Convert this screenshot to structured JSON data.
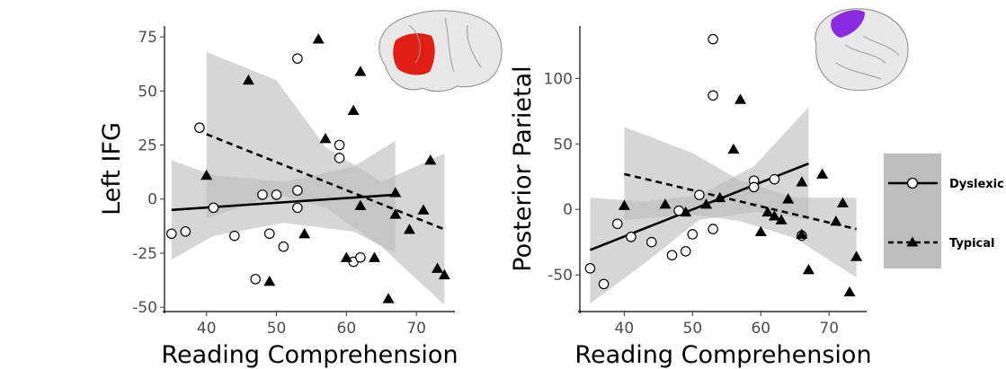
{
  "colors": {
    "line": "#000000",
    "ribbon": "#bdbdbd",
    "legend_bg": "#bdbdbd",
    "brain_left_region": "#e01e14",
    "brain_right_region": "#8a2be2",
    "brain": "#e8e8e8"
  },
  "legend": {
    "placement": "right",
    "entries": [
      {
        "label": "Dyslexic",
        "marker": "open-circle",
        "linestyle": "solid"
      },
      {
        "label": "Typical",
        "marker": "filled-triangle",
        "linestyle": "dashed"
      }
    ]
  },
  "chart_data": [
    {
      "type": "scatter",
      "title": "",
      "xlabel": "Reading Comprehension",
      "ylabel": "Left IFG",
      "xlim": [
        34,
        75.5
      ],
      "ylim": [
        -52,
        80
      ],
      "xticks": [
        40,
        50,
        60,
        70
      ],
      "yticks": [
        -50,
        -25,
        0,
        25,
        50,
        75
      ],
      "xtick_labels": [
        "40",
        "50",
        "60",
        "70"
      ],
      "ytick_labels": [
        "-50",
        "-25",
        "0",
        "25",
        "50",
        "75"
      ],
      "grid": false,
      "inset_icon": "brain-left-ifg-icon",
      "series": [
        {
          "name": "Dyslexic",
          "marker": "open-circle",
          "points": [
            [
              35,
              -16
            ],
            [
              37,
              -15
            ],
            [
              39,
              33
            ],
            [
              41,
              -4
            ],
            [
              44,
              -17
            ],
            [
              47,
              -37
            ],
            [
              48,
              2
            ],
            [
              49,
              -16
            ],
            [
              50,
              2
            ],
            [
              51,
              -22
            ],
            [
              53,
              65
            ],
            [
              53,
              4
            ],
            [
              53,
              -4
            ],
            [
              59,
              25
            ],
            [
              59,
              19
            ],
            [
              61,
              -29
            ],
            [
              62,
              -27
            ]
          ],
          "fit": {
            "x": [
              35,
              67
            ],
            "y": [
              -5,
              2
            ]
          },
          "ci_band": {
            "x": [
              35,
              41,
              51,
              61,
              67
            ],
            "lower": [
              -28,
              -17,
              -11,
              -15,
              -25
            ],
            "upper": [
              18,
              11,
              8,
              15,
              27
            ]
          }
        },
        {
          "name": "Typical",
          "marker": "filled-triangle",
          "points": [
            [
              40,
              11
            ],
            [
              46,
              55
            ],
            [
              49,
              -38
            ],
            [
              54,
              -16
            ],
            [
              56,
              74
            ],
            [
              57,
              28
            ],
            [
              60,
              -27
            ],
            [
              61,
              41
            ],
            [
              62,
              59
            ],
            [
              62,
              -3
            ],
            [
              64,
              -27
            ],
            [
              66,
              -46
            ],
            [
              67,
              3
            ],
            [
              67,
              -7
            ],
            [
              69,
              -14
            ],
            [
              71,
              -5
            ],
            [
              72,
              18
            ],
            [
              73,
              -32
            ],
            [
              74,
              -35
            ]
          ],
          "fit": {
            "x": [
              40,
              74
            ],
            "y": [
              30,
              -14
            ]
          },
          "ci_band": {
            "x": [
              40,
              50,
              57,
              65,
              74
            ],
            "lower": [
              -9,
              2,
              -4,
              -22,
              -49
            ],
            "upper": [
              68,
              55,
              24,
              8,
              21
            ]
          }
        }
      ]
    },
    {
      "type": "scatter",
      "title": "",
      "xlabel": "Reading Comprehension",
      "ylabel": "Posterior Parietal",
      "xlim": [
        33.5,
        75.5
      ],
      "ylim": [
        -78,
        140
      ],
      "xticks": [
        40,
        50,
        60,
        70
      ],
      "yticks": [
        -50,
        0,
        50,
        100
      ],
      "xtick_labels": [
        "40",
        "50",
        "60",
        "70"
      ],
      "ytick_labels": [
        "-50",
        "0",
        "50",
        "100"
      ],
      "grid": false,
      "inset_icon": "brain-posterior-parietal-icon",
      "series": [
        {
          "name": "Dyslexic",
          "marker": "open-circle",
          "points": [
            [
              35,
              -45
            ],
            [
              37,
              -57
            ],
            [
              39,
              -11
            ],
            [
              41,
              -21
            ],
            [
              44,
              -25
            ],
            [
              47,
              -35
            ],
            [
              48,
              -1
            ],
            [
              49,
              -32
            ],
            [
              50,
              -19
            ],
            [
              51,
              11
            ],
            [
              53,
              130
            ],
            [
              53,
              87
            ],
            [
              53,
              -15
            ],
            [
              59,
              22
            ],
            [
              59,
              17
            ],
            [
              62,
              23
            ],
            [
              66,
              -20
            ]
          ],
          "fit": {
            "x": [
              35,
              67
            ],
            "y": [
              -31,
              35
            ]
          },
          "ci_band": {
            "x": [
              35,
              43,
              51,
              59,
              67
            ],
            "lower": [
              -72,
              -41,
              -8,
              -2,
              -8
            ],
            "upper": [
              9,
              6,
              11,
              33,
              78
            ]
          }
        },
        {
          "name": "Typical",
          "marker": "filled-triangle",
          "points": [
            [
              40,
              3
            ],
            [
              46,
              4
            ],
            [
              49,
              -2
            ],
            [
              52,
              4
            ],
            [
              54,
              9
            ],
            [
              56,
              46
            ],
            [
              57,
              84
            ],
            [
              60,
              -17
            ],
            [
              61,
              -2
            ],
            [
              62,
              -5
            ],
            [
              63,
              -8
            ],
            [
              64,
              8
            ],
            [
              66,
              21
            ],
            [
              66,
              -19
            ],
            [
              67,
              -46
            ],
            [
              69,
              27
            ],
            [
              71,
              -9
            ],
            [
              72,
              5
            ],
            [
              73,
              -63
            ],
            [
              74,
              -36
            ]
          ],
          "fit": {
            "x": [
              40,
              74
            ],
            "y": [
              27,
              -15
            ]
          },
          "ci_band": {
            "x": [
              40,
              50,
              57,
              65,
              74
            ],
            "lower": [
              -8,
              -4,
              -9,
              -22,
              -52
            ],
            "upper": [
              63,
              43,
              22,
              9,
              9
            ]
          }
        }
      ]
    }
  ]
}
